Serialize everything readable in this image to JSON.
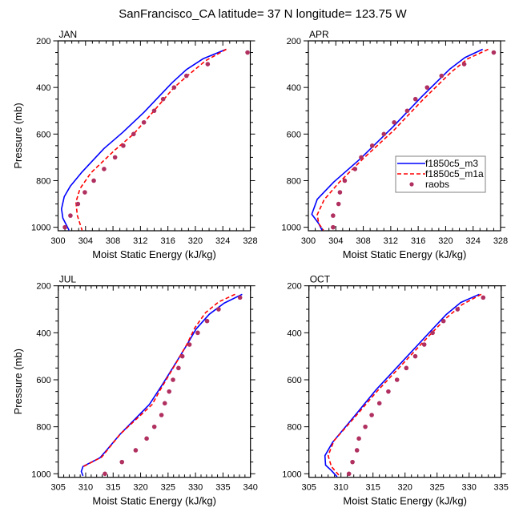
{
  "figure": {
    "title": "SanFrancisco_CA  latitude= 37 N longitude= 123.75 W"
  },
  "colors": {
    "model_m3": "#0000ff",
    "model_m1a": "#ff0000",
    "raobs": "#b03060",
    "axis": "#000000"
  },
  "legend": {
    "placement": "APR panel, lower-right",
    "entries": [
      {
        "label": "f1850c5_m3",
        "style": "solid-line",
        "color": "#0000ff"
      },
      {
        "label": "f1850c5_m1a",
        "style": "dashed-line",
        "color": "#ff0000"
      },
      {
        "label": "raobs",
        "style": "marker",
        "color": "#b03060"
      }
    ]
  },
  "chart_data": [
    {
      "type": "line",
      "title": "JAN",
      "xlabel": "Moist Static Energy (kJ/kg)",
      "ylabel": "Pressure (mb)",
      "xlim": [
        300,
        328
      ],
      "ylim": [
        1015,
        200
      ],
      "y_inverted": true,
      "xticks": [
        300,
        304,
        308,
        312,
        316,
        320,
        324,
        328
      ],
      "xtick_labels": [
        "300",
        "304",
        "308",
        "312",
        "316",
        "320",
        "324",
        "328"
      ],
      "x_minor_step": 1,
      "yticks": [
        200,
        400,
        600,
        800,
        1000
      ],
      "ytick_labels": [
        "200",
        "400",
        "600",
        "800",
        "1000"
      ],
      "y_minor_step": 50,
      "series": [
        {
          "name": "f1850c5_m3",
          "kind": "line",
          "dash": false,
          "x": [
            324.5,
            321.1,
            318.7,
            316.6,
            312.5,
            309.4,
            306.7,
            303.4,
            301.8,
            300.9,
            300.5,
            300.7,
            301.6
          ],
          "p": [
            236,
            277,
            323,
            380,
            507,
            593,
            662,
            766,
            823,
            869,
            921,
            961,
            1013
          ]
        },
        {
          "name": "f1850c5_m1a",
          "kind": "line",
          "dash": true,
          "x": [
            324.5,
            321.5,
            318.8,
            316.8,
            313.9,
            311.0,
            308.3,
            304.8,
            303.2,
            302.6,
            302.8,
            303.5
          ],
          "p": [
            236,
            285,
            351,
            403,
            503,
            600,
            668,
            766,
            834,
            892,
            949,
            1013
          ]
        },
        {
          "name": "raobs",
          "kind": "marker",
          "x": [
            327.6,
            321.8,
            318.7,
            316.9,
            315.3,
            314.0,
            312.5,
            311.0,
            309.5,
            308.3,
            306.7,
            305.2,
            303.9,
            302.9,
            301.8,
            301.0
          ],
          "p": [
            250,
            300,
            350,
            400,
            450,
            500,
            550,
            600,
            650,
            700,
            750,
            800,
            850,
            900,
            950,
            1000
          ]
        }
      ]
    },
    {
      "type": "line",
      "title": "APR",
      "xlabel": "Moist Static Energy (kJ/kg)",
      "ylabel": "",
      "xlim": [
        300,
        328
      ],
      "ylim": [
        1015,
        200
      ],
      "y_inverted": true,
      "xticks": [
        300,
        304,
        308,
        312,
        316,
        320,
        324,
        328
      ],
      "xtick_labels": [
        "300",
        "304",
        "308",
        "312",
        "316",
        "320",
        "324",
        "328"
      ],
      "x_minor_step": 1,
      "yticks": [
        200,
        400,
        600,
        800,
        1000
      ],
      "ytick_labels": [
        "200",
        "400",
        "600",
        "800",
        "1000"
      ],
      "y_minor_step": 50,
      "series": [
        {
          "name": "f1850c5_m3",
          "kind": "line",
          "dash": false,
          "x": [
            325.4,
            322.8,
            320.6,
            316.5,
            312.3,
            307.5,
            303.7,
            301.3,
            300.5,
            301.5,
            302.0
          ],
          "p": [
            236,
            272,
            321,
            440,
            570,
            708,
            806,
            880,
            944,
            984,
            1013
          ]
        },
        {
          "name": "f1850c5_m1a",
          "kind": "line",
          "dash": true,
          "x": [
            326.2,
            323.2,
            320.8,
            316.6,
            312.4,
            307.9,
            304.4,
            302.3,
            301.3,
            301.5,
            302.2
          ],
          "p": [
            236,
            277,
            334,
            455,
            585,
            708,
            810,
            882,
            946,
            984,
            1013
          ]
        },
        {
          "name": "raobs",
          "kind": "marker",
          "x": [
            327.0,
            322.7,
            319.4,
            317.3,
            315.6,
            314.4,
            312.5,
            311.0,
            309.3,
            307.7,
            306.8,
            305.3,
            304.6,
            304.4,
            303.6,
            303.6
          ],
          "p": [
            250,
            300,
            350,
            400,
            450,
            500,
            550,
            600,
            650,
            700,
            750,
            800,
            850,
            900,
            950,
            1000
          ]
        }
      ]
    },
    {
      "type": "line",
      "title": "JUL",
      "xlabel": "Moist Static Energy (kJ/kg)",
      "ylabel": "Pressure (mb)",
      "xlim": [
        305,
        340
      ],
      "ylim": [
        1015,
        200
      ],
      "y_inverted": true,
      "xticks": [
        305,
        310,
        315,
        320,
        325,
        330,
        335,
        340
      ],
      "xtick_labels": [
        "305",
        "310",
        "315",
        "320",
        "325",
        "330",
        "335",
        "340"
      ],
      "x_minor_step": 1,
      "yticks": [
        200,
        400,
        600,
        800,
        1000
      ],
      "ytick_labels": [
        "200",
        "400",
        "600",
        "800",
        "1000"
      ],
      "y_minor_step": 50,
      "series": [
        {
          "name": "f1850c5_m3",
          "kind": "line",
          "dash": false,
          "x": [
            338.5,
            335.2,
            332.5,
            330.1,
            328.4,
            326.0,
            324.0,
            321.6,
            316.3,
            313.8,
            312.6,
            309.5,
            309.2,
            309.5
          ],
          "p": [
            236,
            274,
            321,
            384,
            452,
            544,
            619,
            705,
            831,
            900,
            932,
            969,
            990,
            1009
          ]
        },
        {
          "name": "f1850c5_m1a",
          "kind": "line",
          "dash": true,
          "x": [
            337.2,
            334.2,
            331.8,
            329.9,
            328.4,
            326.5,
            323.6,
            322.1,
            316.3,
            312.9,
            309.6
          ],
          "p": [
            236,
            269,
            315,
            378,
            450,
            527,
            642,
            705,
            831,
            929,
            969
          ]
        },
        {
          "name": "raobs",
          "kind": "marker",
          "x": [
            338.1,
            334.2,
            332.1,
            330.4,
            328.9,
            327.6,
            326.9,
            325.9,
            325.2,
            324.4,
            323.8,
            322.5,
            321.1,
            319.1,
            316.6,
            313.5
          ],
          "p": [
            250,
            300,
            350,
            400,
            450,
            500,
            550,
            600,
            650,
            700,
            750,
            800,
            850,
            900,
            950,
            1000
          ]
        }
      ]
    },
    {
      "type": "line",
      "title": "OCT",
      "xlabel": "Moist Static Energy (kJ/kg)",
      "ylabel": "",
      "xlim": [
        305,
        335
      ],
      "ylim": [
        1015,
        200
      ],
      "y_inverted": true,
      "xticks": [
        305,
        310,
        315,
        320,
        325,
        330,
        335
      ],
      "xtick_labels": [
        "305",
        "310",
        "315",
        "320",
        "325",
        "330",
        "335"
      ],
      "x_minor_step": 1,
      "yticks": [
        200,
        400,
        600,
        800,
        1000
      ],
      "ytick_labels": [
        "200",
        "400",
        "600",
        "800",
        "1000"
      ],
      "y_minor_step": 50,
      "series": [
        {
          "name": "f1850c5_m3",
          "kind": "line",
          "dash": false,
          "x": [
            331.6,
            328.7,
            326.4,
            324.3,
            315.5,
            312.4,
            308.7,
            307.5,
            307.6,
            308.5,
            309.4
          ],
          "p": [
            236,
            271,
            323,
            384,
            642,
            745,
            866,
            923,
            963,
            986,
            1013
          ]
        },
        {
          "name": "f1850c5_m1a",
          "kind": "line",
          "dash": true,
          "x": [
            331.9,
            328.9,
            326.4,
            323.5,
            315.5,
            312.8,
            308.9,
            308.0,
            308.5,
            309.9
          ],
          "p": [
            236,
            280,
            338,
            420,
            653,
            739,
            860,
            923,
            969,
            1013
          ]
        },
        {
          "name": "raobs",
          "kind": "marker",
          "x": [
            332.2,
            328.2,
            326.0,
            324.3,
            323.0,
            321.6,
            320.2,
            318.75,
            317.4,
            316.0,
            314.8,
            313.8,
            312.8,
            312.5,
            311.8,
            311.25
          ],
          "p": [
            250,
            300,
            350,
            400,
            450,
            500,
            550,
            600,
            650,
            700,
            750,
            800,
            850,
            900,
            950,
            1000
          ]
        }
      ]
    }
  ]
}
